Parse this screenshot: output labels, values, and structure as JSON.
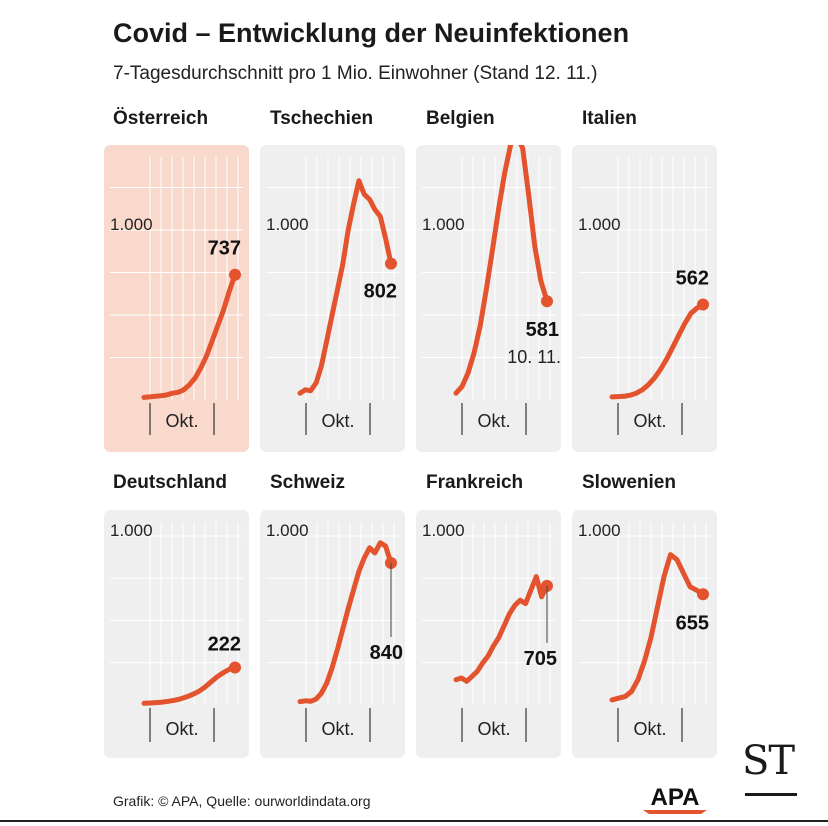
{
  "header": {
    "title": "Covid – Entwicklung der Neuinfektionen",
    "subtitle": "7-Tagesdurchschnitt pro 1 Mio. Einwohner (Stand 12. 11.)"
  },
  "footer": {
    "source": "Grafik: © APA, Quelle: ourworldindata.org",
    "apa_logo_text": "APA",
    "st_logo_text": "ST"
  },
  "colors": {
    "line": "#e2532e",
    "panel_bg": "#efefef",
    "panel_highlight": "#f9d9cc"
  },
  "chart_data": [
    {
      "type": "line",
      "title": "Österreich",
      "highlight": true,
      "ylim": [
        0,
        1700
      ],
      "ref_label": "1.000",
      "x_label": "Okt.",
      "end_label": "737",
      "end_sublabel": "",
      "values": [
        15,
        18,
        22,
        25,
        30,
        40,
        45,
        60,
        90,
        130,
        190,
        260,
        350,
        440,
        530,
        640,
        737
      ]
    },
    {
      "type": "line",
      "title": "Tschechien",
      "highlight": false,
      "ylim": [
        0,
        1700
      ],
      "ref_label": "1.000",
      "x_label": "Okt.",
      "end_label": "802",
      "end_sublabel": "",
      "values": [
        40,
        60,
        55,
        100,
        200,
        350,
        500,
        650,
        800,
        1000,
        1150,
        1290,
        1210,
        1180,
        1120,
        1080,
        950,
        802
      ]
    },
    {
      "type": "line",
      "title": "Belgien",
      "highlight": false,
      "ylim": [
        0,
        1700
      ],
      "ref_label": "1.000",
      "x_label": "Okt.",
      "end_label": "581",
      "end_sublabel": "10. 11.",
      "values": [
        40,
        80,
        160,
        280,
        440,
        650,
        880,
        1120,
        1330,
        1500,
        1560,
        1480,
        1200,
        900,
        700,
        581
      ]
    },
    {
      "type": "line",
      "title": "Italien",
      "highlight": false,
      "ylim": [
        0,
        1700
      ],
      "ref_label": "1.000",
      "x_label": "Okt.",
      "end_label": "562",
      "end_sublabel": "",
      "values": [
        18,
        20,
        22,
        28,
        40,
        60,
        90,
        130,
        180,
        240,
        310,
        380,
        450,
        510,
        540,
        562
      ]
    },
    {
      "type": "line",
      "title": "Deutschland",
      "highlight": false,
      "ylim": [
        0,
        1700
      ],
      "ref_label": "1.000",
      "x_label": "Okt.",
      "end_label": "222",
      "end_sublabel": "",
      "values": [
        10,
        12,
        14,
        17,
        22,
        28,
        36,
        48,
        62,
        80,
        105,
        135,
        165,
        190,
        210,
        222
      ]
    },
    {
      "type": "line",
      "title": "Schweiz",
      "highlight": false,
      "ylim": [
        0,
        1000
      ],
      "ref_label": "1.000",
      "x_label": "Okt.",
      "end_label": "840",
      "end_sublabel": "",
      "values": [
        20,
        25,
        22,
        35,
        70,
        130,
        220,
        330,
        450,
        570,
        680,
        790,
        870,
        930,
        900,
        960,
        940,
        840
      ]
    },
    {
      "type": "line",
      "title": "Frankreich",
      "highlight": false,
      "ylim": [
        0,
        1000
      ],
      "ref_label": "1.000",
      "x_label": "Okt.",
      "end_label": "705",
      "end_sublabel": "",
      "values": [
        150,
        160,
        140,
        170,
        200,
        250,
        290,
        350,
        400,
        470,
        540,
        590,
        620,
        600,
        680,
        760,
        640,
        705
      ]
    },
    {
      "type": "line",
      "title": "Slowenien",
      "highlight": false,
      "ylim": [
        0,
        1000
      ],
      "ref_label": "1.000",
      "x_label": "Okt.",
      "end_label": "655",
      "end_sublabel": "",
      "values": [
        30,
        40,
        50,
        80,
        150,
        260,
        400,
        580,
        760,
        890,
        860,
        780,
        700,
        680,
        655
      ]
    }
  ]
}
